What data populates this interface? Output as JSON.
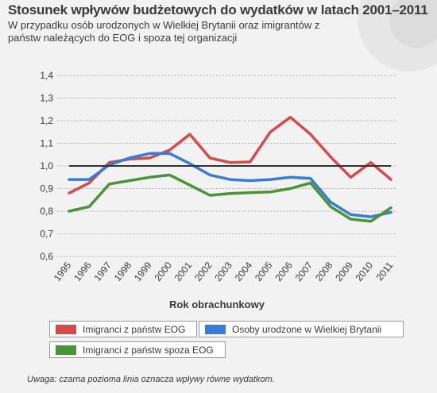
{
  "header": {
    "title": "Stosunek wpływów budżetowych do wydatków w latach 2001–2011",
    "subtitle": "W przypadku osób urodzonych w Wielkiej Brytanii oraz imigrantów z państw należących do EOG i spoza tej organizacji"
  },
  "footer": {
    "note": "Uwaga: czarna pozioma linia oznacza wpływy równe wydatkom."
  },
  "legend": [
    {
      "label": "Imigranci z państw EOG",
      "color": "#d64a4c"
    },
    {
      "label": "Osoby urodzone w Wielkiej Brytanii",
      "color": "#3a7bd5"
    },
    {
      "label": "Imigranci z państw spoza EOG",
      "color": "#4a9438"
    }
  ],
  "chart_data": {
    "type": "line",
    "title": "Stosunek wpływów budżetowych do wydatków w latach 2001–2011",
    "xlabel": "Rok obrachunkowy",
    "ylabel": "",
    "ylim": [
      0.6,
      1.4
    ],
    "y_ticks": [
      "0,6",
      "0,7",
      "0,8",
      "0,9",
      "1,0",
      "1,1",
      "1,2",
      "1,3",
      "1,4"
    ],
    "categories": [
      "1995",
      "1996",
      "1997",
      "1998",
      "1999",
      "2000",
      "2001",
      "2002",
      "2003",
      "2004",
      "2005",
      "2006",
      "2007",
      "2008",
      "2009",
      "2010",
      "2011"
    ],
    "grid": "horizontal dotted",
    "reference_line": {
      "value": 1.0,
      "color": "#333333"
    },
    "legend_position": "bottom",
    "series": [
      {
        "name": "Imigranci z państw EOG",
        "color": "#d64a4c",
        "values": [
          0.88,
          0.925,
          1.015,
          1.03,
          1.035,
          1.07,
          1.14,
          1.035,
          1.015,
          1.018,
          1.15,
          1.215,
          1.14,
          1.04,
          0.95,
          1.015,
          0.94
        ]
      },
      {
        "name": "Osoby urodzone w Wielkiej Brytanii",
        "color": "#3a7bd5",
        "values": [
          0.94,
          0.94,
          1.005,
          1.035,
          1.055,
          1.055,
          1.01,
          0.96,
          0.94,
          0.935,
          0.94,
          0.95,
          0.945,
          0.84,
          0.785,
          0.775,
          0.795
        ]
      },
      {
        "name": "Imigranci z państw spoza EOG",
        "color": "#4a9438",
        "values": [
          0.8,
          0.82,
          0.92,
          0.935,
          0.95,
          0.96,
          0.915,
          0.87,
          0.878,
          0.882,
          0.885,
          0.9,
          0.925,
          0.82,
          0.765,
          0.755,
          0.815
        ]
      }
    ]
  }
}
